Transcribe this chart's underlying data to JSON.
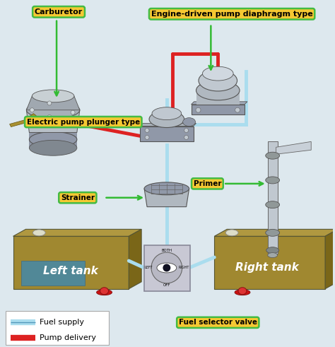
{
  "bg_color": "#dde8ee",
  "labels": {
    "carburetor": "Carburetor",
    "engine_pump": "Engine-driven pump diaphragm type",
    "electric_pump": "Electric pump plunger type",
    "strainer": "Strainer",
    "primer": "Primer",
    "left_tank": "Left tank",
    "right_tank": "Right tank",
    "fuel_selector": "Fuel selector valve",
    "fuel_supply": "Fuel supply",
    "pump_delivery": "Pump delivery"
  },
  "label_bg": "#f5c832",
  "label_border": "#44bb44",
  "fuel_supply_color": "#aaddee",
  "pump_delivery_color": "#dd2222",
  "tank_color": "#a08830",
  "tank_color_dark": "#7a6618",
  "tank_color_top": "#b09840",
  "water_color": "#4488aa",
  "green_arrow": "#33bb33",
  "selector_bg": "#c8c8d4",
  "selector_border": "#888898",
  "component_color": "#b0b8c0",
  "component_mid": "#9098a8",
  "component_dark": "#707880"
}
